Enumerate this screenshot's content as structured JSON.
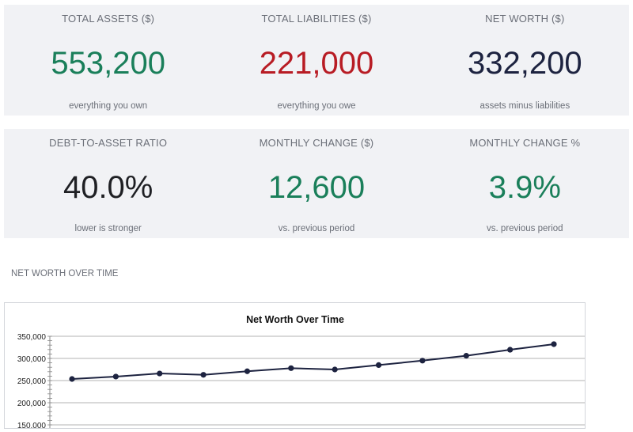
{
  "kpis": [
    {
      "label": "TOTAL ASSETS ($)",
      "value": "553,200",
      "caption": "everything you own",
      "color": "#1a7f5a"
    },
    {
      "label": "TOTAL LIABILITIES ($)",
      "value": "221,000",
      "caption": "everything you owe",
      "color": "#b81c24"
    },
    {
      "label": "NET WORTH ($)",
      "value": "332,200",
      "caption": "assets minus liabilities",
      "color": "#1d2340"
    },
    {
      "label": "DEBT-TO-ASSET RATIO",
      "value": "40.0%",
      "caption": "lower is stronger",
      "color": "#1f2024"
    },
    {
      "label": "MONTHLY CHANGE ($)",
      "value": "12,600",
      "caption": "vs. previous period",
      "color": "#1a7f5a"
    },
    {
      "label": "MONTHLY CHANGE %",
      "value": "3.9%",
      "caption": "vs. previous period",
      "color": "#1a7f5a"
    }
  ],
  "section_title": "NET WORTH OVER TIME",
  "chart_data": {
    "type": "line",
    "title": "Net Worth Over Time",
    "xlabel": "",
    "ylabel": "",
    "y_ticks": [
      "350,000",
      "300,000",
      "250,000",
      "200,000",
      "150,000"
    ],
    "ylim": [
      150000,
      350000
    ],
    "grid": true,
    "series": [
      {
        "values": [
          253600,
          259000,
          266000,
          263000,
          271000,
          278000,
          275000,
          285000,
          295000,
          306000,
          319600,
          332200
        ],
        "color": "#1d2340"
      }
    ]
  }
}
